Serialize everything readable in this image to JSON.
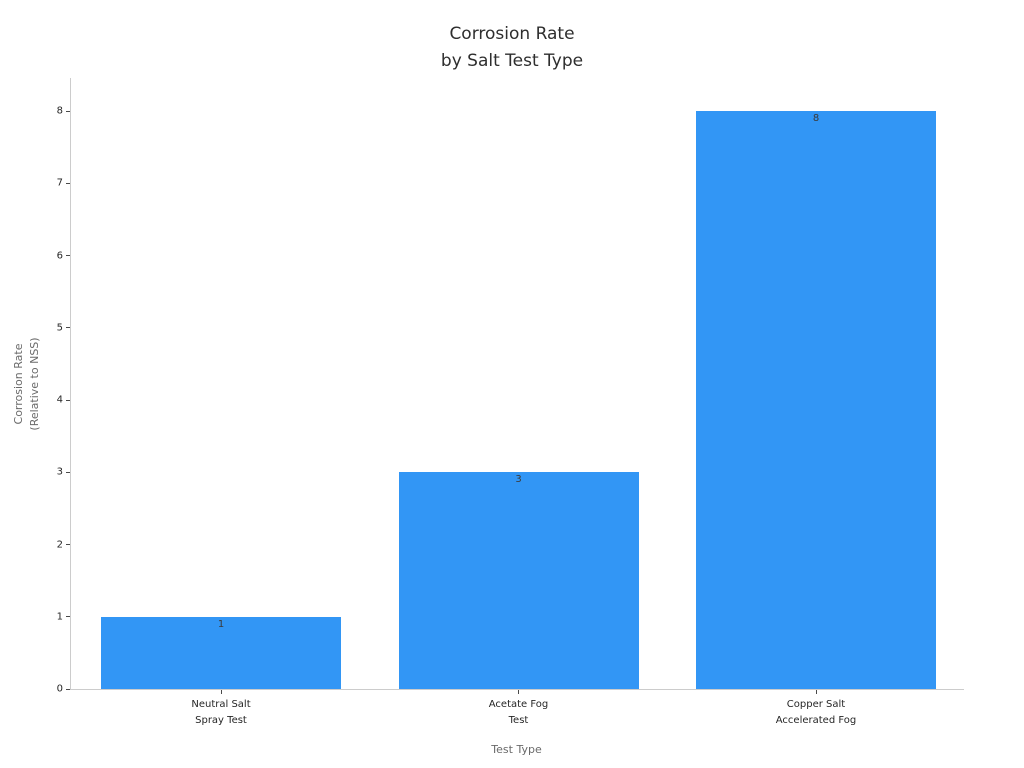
{
  "chart_data": {
    "type": "bar",
    "title": "Corrosion Rate\nby Salt Test Type",
    "xlabel": "Test Type",
    "ylabel": "Corrosion Rate\n(Relative to NSS)",
    "categories": [
      "Neutral Salt\nSpray Test",
      "Acetate Fog\nTest",
      "Copper Salt\nAccelerated Fog"
    ],
    "values": [
      1,
      3,
      8
    ],
    "bar_value_labels": [
      "1",
      "3",
      "8"
    ],
    "yticks": [
      0,
      1,
      2,
      3,
      4,
      5,
      6,
      7,
      8
    ],
    "ylim": [
      0,
      8.46
    ],
    "grid": false,
    "legend": null,
    "colors": {
      "bar_fill": "#3296f5",
      "title_text": "#2e2e2e",
      "tick_text": "#262626",
      "axis_title_text": "#6a6a6a",
      "spine": "#cccccc",
      "tick_mark": "#4a4a4a",
      "bar_value_text": "#3a3a3a",
      "background": "#ffffff"
    }
  }
}
